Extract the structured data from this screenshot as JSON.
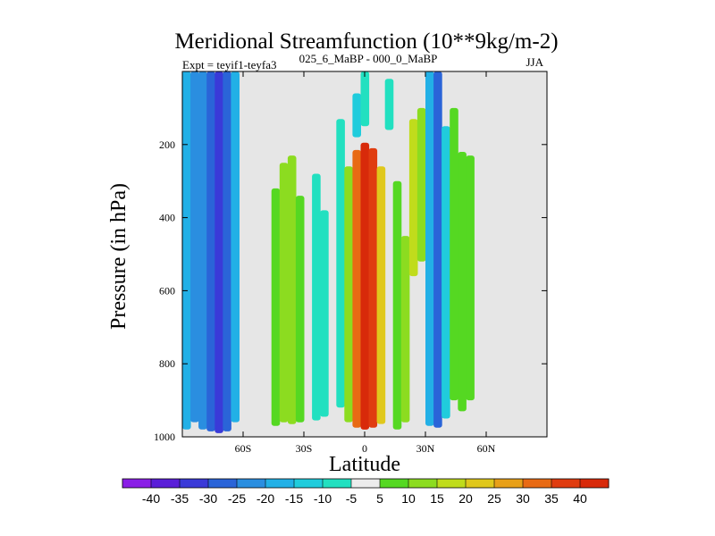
{
  "chart_data": {
    "type": "heatmap",
    "title": "Meridional Streamfunction (10**9kg/m-2)",
    "left_subtitle": "Expt = teyif1-teyfa3",
    "center_subtitle": "025_6_MaBP - 000_0_MaBP",
    "right_subtitle": "JJA",
    "xlabel": "Latitude",
    "ylabel": "Pressure (in hPa)",
    "xlim": [
      -90,
      90
    ],
    "ylim": [
      1000,
      0
    ],
    "x_ticks": [
      {
        "value": -60,
        "label": "60S"
      },
      {
        "value": -30,
        "label": "30S"
      },
      {
        "value": 0,
        "label": "0"
      },
      {
        "value": 30,
        "label": "30N"
      },
      {
        "value": 60,
        "label": "60N"
      }
    ],
    "y_ticks": [
      {
        "value": 200,
        "label": "200"
      },
      {
        "value": 400,
        "label": "400"
      },
      {
        "value": 600,
        "label": "600"
      },
      {
        "value": 800,
        "label": "800"
      },
      {
        "value": 1000,
        "label": "1000"
      }
    ],
    "background_color": "#e6e6e6",
    "colorbar": {
      "levels": [
        -40,
        -35,
        -30,
        -25,
        -20,
        -15,
        -10,
        -5,
        5,
        10,
        15,
        20,
        25,
        30,
        35,
        40
      ],
      "colors": [
        "#8a1ee6",
        "#5a1ed8",
        "#3a3ad8",
        "#2a64d8",
        "#2a8ee0",
        "#22b0e6",
        "#20ccdc",
        "#22e0c0",
        "#ececec",
        "#55d822",
        "#8cdc20",
        "#c0dc1c",
        "#e0c81c",
        "#e8a018",
        "#e86a14",
        "#e03c10",
        "#d82a0a"
      ]
    },
    "cells": [
      {
        "lat": -90,
        "p_top": 0,
        "p_bottom": 980,
        "value": -18
      },
      {
        "lat": -86,
        "p_top": 0,
        "p_bottom": 960,
        "value": -22
      },
      {
        "lat": -82,
        "p_top": 0,
        "p_bottom": 980,
        "value": -25
      },
      {
        "lat": -78,
        "p_top": 0,
        "p_bottom": 985,
        "value": -28
      },
      {
        "lat": -74,
        "p_top": 0,
        "p_bottom": 990,
        "value": -33
      },
      {
        "lat": -70,
        "p_top": 0,
        "p_bottom": 985,
        "value": -29
      },
      {
        "lat": -66,
        "p_top": 0,
        "p_bottom": 960,
        "value": -20
      },
      {
        "lat": -46,
        "p_top": 320,
        "p_bottom": 970,
        "value": 9
      },
      {
        "lat": -42,
        "p_top": 250,
        "p_bottom": 960,
        "value": 12
      },
      {
        "lat": -38,
        "p_top": 230,
        "p_bottom": 965,
        "value": 10
      },
      {
        "lat": -34,
        "p_top": 340,
        "p_bottom": 960,
        "value": 7
      },
      {
        "lat": -26,
        "p_top": 280,
        "p_bottom": 955,
        "value": -7
      },
      {
        "lat": -22,
        "p_top": 380,
        "p_bottom": 945,
        "value": -6
      },
      {
        "lat": -14,
        "p_top": 130,
        "p_bottom": 920,
        "value": -6
      },
      {
        "lat": -10,
        "p_top": 260,
        "p_bottom": 960,
        "value": 14
      },
      {
        "lat": -6,
        "p_top": 215,
        "p_bottom": 975,
        "value": 33
      },
      {
        "lat": -2,
        "p_top": 195,
        "p_bottom": 980,
        "value": 42
      },
      {
        "lat": 2,
        "p_top": 210,
        "p_bottom": 975,
        "value": 36
      },
      {
        "lat": 6,
        "p_top": 260,
        "p_bottom": 965,
        "value": 22
      },
      {
        "lat": -6,
        "p_top": 60,
        "p_bottom": 180,
        "value": -12
      },
      {
        "lat": -2,
        "p_top": 0,
        "p_bottom": 150,
        "value": -8
      },
      {
        "lat": 10,
        "p_top": 20,
        "p_bottom": 160,
        "value": -8
      },
      {
        "lat": 14,
        "p_top": 300,
        "p_bottom": 980,
        "value": 6
      },
      {
        "lat": 18,
        "p_top": 450,
        "p_bottom": 960,
        "value": 14
      },
      {
        "lat": 22,
        "p_top": 130,
        "p_bottom": 560,
        "value": 17
      },
      {
        "lat": 26,
        "p_top": 100,
        "p_bottom": 520,
        "value": 13
      },
      {
        "lat": 30,
        "p_top": 0,
        "p_bottom": 970,
        "value": -18
      },
      {
        "lat": 34,
        "p_top": 0,
        "p_bottom": 975,
        "value": -27
      },
      {
        "lat": 38,
        "p_top": 150,
        "p_bottom": 950,
        "value": -14
      },
      {
        "lat": 42,
        "p_top": 100,
        "p_bottom": 900,
        "value": 7
      },
      {
        "lat": 46,
        "p_top": 220,
        "p_bottom": 930,
        "value": 8
      },
      {
        "lat": 50,
        "p_top": 230,
        "p_bottom": 900,
        "value": 7
      }
    ]
  }
}
